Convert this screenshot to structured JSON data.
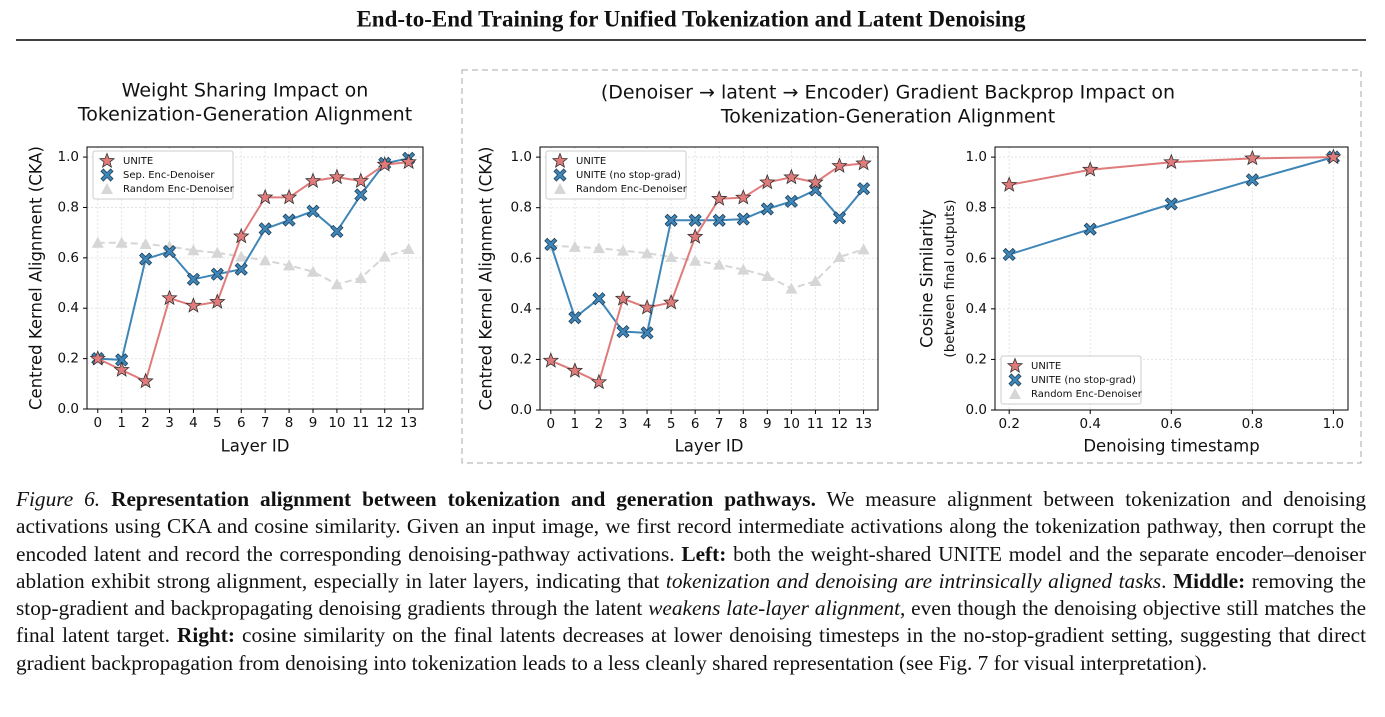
{
  "title": "End-to-End Training for Unified Tokenization and Latent Denoising",
  "group_title": [
    "(Denoiser → latent → Encoder) Gradient Backprop Impact on",
    "Tokenization-Generation Alignment"
  ],
  "chart_data": [
    {
      "type": "line",
      "title": [
        "Weight Sharing Impact on",
        "Tokenization-Generation Alignment"
      ],
      "xlabel": "Layer ID",
      "ylabel": "Centred Kernel Alignment (CKA)",
      "x": [
        0,
        1,
        2,
        3,
        4,
        5,
        6,
        7,
        8,
        9,
        10,
        11,
        12,
        13
      ],
      "xlim": [
        -0.45,
        13.6
      ],
      "xticks": [
        0,
        1,
        2,
        3,
        4,
        5,
        6,
        7,
        8,
        9,
        10,
        11,
        12,
        13
      ],
      "ylim": [
        0,
        1.04
      ],
      "yticks": [
        {
          "value": 0,
          "label": "0.0"
        },
        0.2,
        0.4,
        0.6,
        0.8,
        {
          "value": 1,
          "label": "1.0"
        }
      ],
      "grid": true,
      "legend": "upper-left",
      "series": [
        {
          "name": "UNITE",
          "color": "#e07b7b",
          "marker": "star",
          "linestyle": "solid",
          "values": [
            0.2,
            0.155,
            0.11,
            0.44,
            0.41,
            0.425,
            0.685,
            0.84,
            0.84,
            0.905,
            0.92,
            0.905,
            0.97,
            0.98
          ]
        },
        {
          "name": "Sep. Enc-Denoiser",
          "color": "#3f86b8",
          "marker": "x",
          "linestyle": "solid",
          "values": [
            0.2,
            0.195,
            0.595,
            0.625,
            0.515,
            0.535,
            0.555,
            0.715,
            0.75,
            0.785,
            0.705,
            0.85,
            0.975,
            0.995
          ]
        },
        {
          "name": "Random Enc-Denoiser",
          "color": "#d6d6d6",
          "marker": "triangle",
          "linestyle": "dashed",
          "values": [
            0.66,
            0.66,
            0.655,
            0.645,
            0.63,
            0.62,
            0.605,
            0.59,
            0.57,
            0.545,
            0.495,
            0.52,
            0.605,
            0.635
          ]
        }
      ]
    },
    {
      "type": "line",
      "xlabel": "Layer ID",
      "ylabel": "Centred Kernel Alignment (CKA)",
      "x": [
        0,
        1,
        2,
        3,
        4,
        5,
        6,
        7,
        8,
        9,
        10,
        11,
        12,
        13
      ],
      "xlim": [
        -0.45,
        13.6
      ],
      "xticks": [
        0,
        1,
        2,
        3,
        4,
        5,
        6,
        7,
        8,
        9,
        10,
        11,
        12,
        13
      ],
      "ylim": [
        0,
        1.04
      ],
      "yticks": [
        {
          "value": 0,
          "label": "0.0"
        },
        0.2,
        0.4,
        0.6,
        0.8,
        {
          "value": 1,
          "label": "1.0"
        }
      ],
      "grid": true,
      "legend": "upper-left",
      "series": [
        {
          "name": "UNITE",
          "color": "#e07b7b",
          "marker": "star",
          "linestyle": "solid",
          "values": [
            0.195,
            0.155,
            0.11,
            0.44,
            0.405,
            0.425,
            0.685,
            0.835,
            0.84,
            0.9,
            0.92,
            0.9,
            0.965,
            0.975
          ]
        },
        {
          "name": "UNITE (no stop-grad)",
          "color": "#3f86b8",
          "marker": "x",
          "linestyle": "solid",
          "values": [
            0.655,
            0.365,
            0.44,
            0.31,
            0.305,
            0.75,
            0.75,
            0.75,
            0.755,
            0.795,
            0.825,
            0.87,
            0.76,
            0.875
          ]
        },
        {
          "name": "Random Enc-Denoiser",
          "color": "#d6d6d6",
          "marker": "triangle",
          "linestyle": "dashed",
          "values": [
            0.65,
            0.645,
            0.64,
            0.63,
            0.62,
            0.605,
            0.59,
            0.575,
            0.555,
            0.53,
            0.48,
            0.51,
            0.605,
            0.635
          ]
        }
      ]
    },
    {
      "type": "line",
      "xlabel": "Denoising timestamp",
      "ylabel": [
        "Cosine Similarity",
        "(between final outputs)"
      ],
      "x": [
        0.2,
        0.4,
        0.6,
        0.8,
        1.0
      ],
      "xlim": [
        0.165,
        1.036
      ],
      "xticks": [
        0.2,
        0.4,
        0.6,
        0.8,
        {
          "value": 1,
          "label": "1.0"
        }
      ],
      "ylim": [
        0,
        1.04
      ],
      "yticks": [
        {
          "value": 0,
          "label": "0.0"
        },
        0.2,
        0.4,
        0.6,
        0.8,
        {
          "value": 1,
          "label": "1.0"
        }
      ],
      "grid": true,
      "legend": "lower-left",
      "series": [
        {
          "name": "UNITE",
          "color": "#e07b7b",
          "marker": "star",
          "linestyle": "solid",
          "values": [
            0.89,
            0.95,
            0.98,
            0.995,
            1.0
          ]
        },
        {
          "name": "UNITE (no stop-grad)",
          "color": "#3f86b8",
          "marker": "x",
          "linestyle": "solid",
          "values": [
            0.615,
            0.715,
            0.815,
            0.91,
            1.0
          ]
        },
        {
          "name": "Random Enc-Denoiser",
          "color": "#d6d6d6",
          "marker": "triangle",
          "linestyle": "dashed",
          "values": [
            null,
            null,
            null,
            null,
            null
          ]
        }
      ]
    }
  ],
  "caption": [
    {
      "text": "Figure 6.",
      "style": "italic"
    },
    {
      "text": " Representation alignment between tokenization and generation pathways.",
      "style": "bold"
    },
    {
      "text": " We measure alignment between tokenization and denoising activations using CKA and cosine similarity. Given an input image, we first record intermediate activations along the tokenization pathway, then corrupt the encoded latent and record the corresponding denoising-pathway activations. ",
      "style": "normal"
    },
    {
      "text": "Left:",
      "style": "bold"
    },
    {
      "text": " both the weight-shared UNITE model and the separate encoder–denoiser ablation exhibit strong alignment, especially in later layers, indicating that ",
      "style": "normal"
    },
    {
      "text": "tokenization and denoising are intrinsically aligned tasks",
      "style": "italic"
    },
    {
      "text": ". ",
      "style": "normal"
    },
    {
      "text": "Middle:",
      "style": "bold"
    },
    {
      "text": " removing the stop-gradient and backpropagating denoising gradients through the latent ",
      "style": "normal"
    },
    {
      "text": "weakens late-layer alignment",
      "style": "italic"
    },
    {
      "text": ", even though the denoising objective still matches the final latent target. ",
      "style": "normal"
    },
    {
      "text": "Right:",
      "style": "bold"
    },
    {
      "text": " cosine similarity on the final latents decreases at lower denoising timesteps in the no-stop-gradient setting, suggesting that direct gradient backpropagation from denoising into tokenization leads to a less cleanly shared representation (see Fig. 7 for visual interpretation).",
      "style": "normal"
    }
  ]
}
